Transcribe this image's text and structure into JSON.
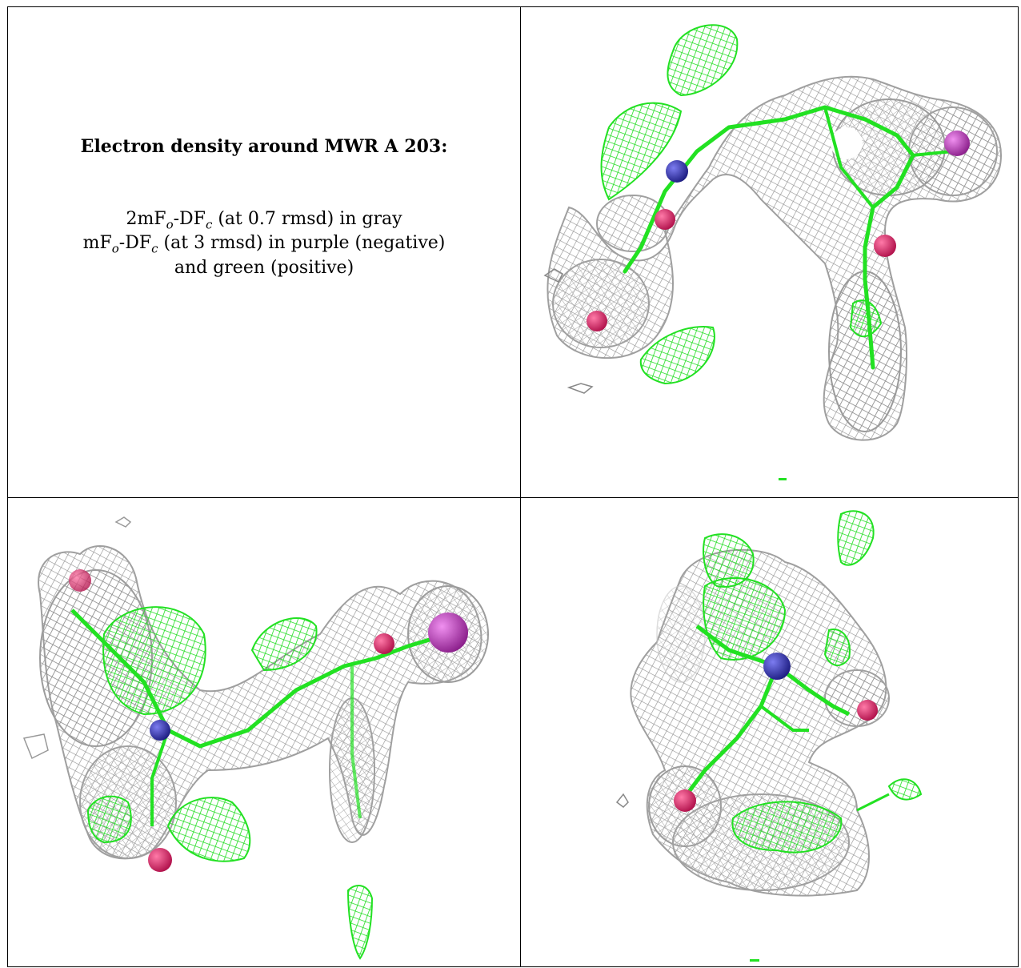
{
  "caption": {
    "title": "Electron density around MWR A 203:",
    "line1": {
      "pre": "2mF",
      "sub1": "o",
      "mid": "-DF",
      "sub2": "c",
      "post": " (at 0.7 rmsd) in gray"
    },
    "line2": {
      "pre": "mF",
      "sub1": "o",
      "mid": "-DF",
      "sub2": "c",
      "post": " (at 3 rmsd) in purple (negative)"
    },
    "line3": "and green (positive)"
  },
  "colors": {
    "map_2fofc": "#9a9a9a",
    "map_fofc_positive": "#22e122",
    "map_fofc_negative": "#b030b0",
    "atom_nitrogen": "#3333aa",
    "atom_oxygen": "#d81b60",
    "atom_halogen": "#c040c0"
  }
}
